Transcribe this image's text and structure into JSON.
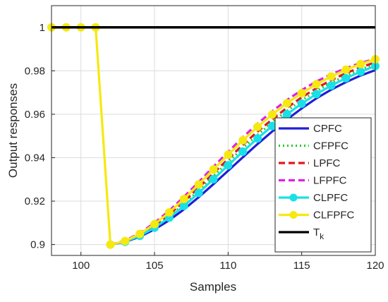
{
  "chart_data": {
    "type": "line",
    "xlabel": "Samples",
    "ylabel": "Output responses",
    "xlim": [
      98,
      120
    ],
    "ylim": [
      0.895,
      1.01
    ],
    "xticks": [
      100,
      105,
      110,
      115,
      120
    ],
    "yticks": [
      0.9,
      0.92,
      0.94,
      0.96,
      0.98,
      1
    ],
    "ytick_labels": [
      "0.9",
      "0.92",
      "0.94",
      "0.96",
      "0.98",
      "1"
    ],
    "grid": true,
    "legend_position": "right",
    "series": [
      {
        "name": "CPFC",
        "color": "#1f1fd6",
        "style": "solid",
        "marker": "none",
        "x": [
          102,
          103,
          104,
          105,
          106,
          107,
          108,
          109,
          110,
          111,
          112,
          113,
          114,
          115,
          116,
          117,
          118,
          119,
          120
        ],
        "y": [
          0.9,
          0.9012,
          0.9036,
          0.907,
          0.9112,
          0.9162,
          0.9218,
          0.9278,
          0.934,
          0.9402,
          0.9463,
          0.9521,
          0.9576,
          0.9627,
          0.9673,
          0.9713,
          0.9748,
          0.9778,
          0.9803
        ]
      },
      {
        "name": "CFPFC",
        "color": "#22cc22",
        "style": "dotted",
        "marker": "none",
        "x": [
          102,
          103,
          104,
          105,
          106,
          107,
          108,
          109,
          110,
          111,
          112,
          113,
          114,
          115,
          116,
          117,
          118,
          119,
          120
        ],
        "y": [
          0.9,
          0.9014,
          0.9042,
          0.9082,
          0.913,
          0.9187,
          0.925,
          0.9315,
          0.938,
          0.9444,
          0.9505,
          0.9563,
          0.9616,
          0.9664,
          0.9707,
          0.9745,
          0.9777,
          0.9806,
          0.983
        ]
      },
      {
        "name": "LPFC",
        "color": "#e01818",
        "style": "dashed",
        "marker": "none",
        "x": [
          102,
          103,
          104,
          105,
          106,
          107,
          108,
          109,
          110,
          111,
          112,
          113,
          114,
          115,
          116,
          117,
          118,
          119,
          120
        ],
        "y": [
          0.9,
          0.9015,
          0.9046,
          0.9088,
          0.9139,
          0.9198,
          0.9262,
          0.9328,
          0.9394,
          0.9459,
          0.952,
          0.9577,
          0.963,
          0.9678,
          0.972,
          0.9757,
          0.9789,
          0.9816,
          0.9839
        ]
      },
      {
        "name": "LFPFC",
        "color": "#e020e0",
        "style": "dashed",
        "marker": "none",
        "x": [
          102,
          103,
          104,
          105,
          106,
          107,
          108,
          109,
          110,
          111,
          112,
          113,
          114,
          115,
          116,
          117,
          118,
          119,
          120
        ],
        "y": [
          0.9,
          0.9018,
          0.9053,
          0.91,
          0.9156,
          0.922,
          0.9288,
          0.9358,
          0.9427,
          0.9494,
          0.9557,
          0.9614,
          0.9666,
          0.9711,
          0.9751,
          0.9784,
          0.9812,
          0.9836,
          0.9856
        ]
      },
      {
        "name": "CLPFC",
        "color": "#18e0e8",
        "style": "solid",
        "marker": "circle",
        "x": [
          102,
          103,
          104,
          105,
          106,
          107,
          108,
          109,
          110,
          111,
          112,
          113,
          114,
          115,
          116,
          117,
          118,
          119,
          120
        ],
        "y": [
          0.9,
          0.9013,
          0.904,
          0.9078,
          0.9124,
          0.9178,
          0.9238,
          0.9301,
          0.9365,
          0.9428,
          0.9489,
          0.9546,
          0.96,
          0.9649,
          0.9693,
          0.9732,
          0.9766,
          0.9796,
          0.9822
        ]
      },
      {
        "name": "CLFPFC",
        "color": "#f5e90f",
        "style": "solid",
        "marker": "circle",
        "x": [
          98,
          99,
          100,
          101,
          102,
          103,
          104,
          105,
          106,
          107,
          108,
          109,
          110,
          111,
          112,
          113,
          114,
          115,
          116,
          117,
          118,
          119,
          120
        ],
        "y": [
          1,
          1,
          1,
          1,
          0.9,
          0.9016,
          0.9049,
          0.9094,
          0.9148,
          0.921,
          0.9277,
          0.9346,
          0.9414,
          0.948,
          0.9542,
          0.9599,
          0.9651,
          0.9697,
          0.9738,
          0.9774,
          0.9805,
          0.9831,
          0.9853
        ]
      },
      {
        "name": "T",
        "name_sub": "k",
        "color": "#000000",
        "style": "solid",
        "marker": "none",
        "x": [
          98,
          120
        ],
        "y": [
          1,
          1
        ]
      }
    ]
  }
}
